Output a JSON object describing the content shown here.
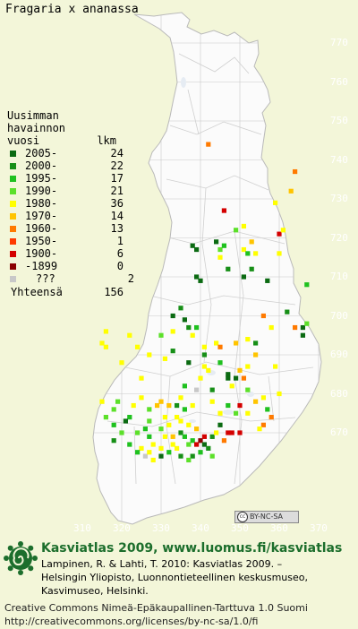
{
  "title": "Fragaria x ananassa",
  "map": {
    "y_ticks": [
      "770",
      "760",
      "750",
      "740",
      "730",
      "720",
      "710",
      "700",
      "690",
      "680",
      "670"
    ],
    "x_ticks": [
      "310",
      "320",
      "330",
      "340",
      "350",
      "360",
      "370"
    ]
  },
  "legend": {
    "heading": [
      "Uusimman",
      "havainnon"
    ],
    "col_year": "vuosi",
    "col_count": "lkm",
    "items": [
      {
        "label": "2005-",
        "count": "24",
        "color": "#0b6a12"
      },
      {
        "label": "2000-",
        "count": "22",
        "color": "#178f17"
      },
      {
        "label": "1995-",
        "count": "17",
        "color": "#1fc11f"
      },
      {
        "label": "1990-",
        "count": "21",
        "color": "#5ce02a"
      },
      {
        "label": "1980-",
        "count": "36",
        "color": "#ffff00"
      },
      {
        "label": "1970-",
        "count": "14",
        "color": "#ffc400"
      },
      {
        "label": "1960-",
        "count": "13",
        "color": "#ff7a00"
      },
      {
        "label": "1950-",
        "count": "1",
        "color": "#ff3a00"
      },
      {
        "label": "1900-",
        "count": "6",
        "color": "#d40000"
      },
      {
        "label": "-1899",
        "count": "0",
        "color": "#8a0000"
      },
      {
        "label": "???",
        "count": "2",
        "color": "#c8c8c8"
      }
    ],
    "total_label": "Yhteensä",
    "total_count": "156"
  },
  "cc_badge": "BY-NC-SA",
  "footer": {
    "title": "Kasviatlas 2009, www.luomus.fi/kasviatlas",
    "citation": [
      "Lampinen, R. & Lahti, T. 2010: Kasviatlas 2009. –",
      "Helsingin Yliopisto, Luonnontieteellinen keskusmuseo,",
      "Kasvimuseo, Helsinki."
    ],
    "license": [
      "Creative Commons Nimeä-Epäkaupallinen-Tarttuva 1.0 Suomi",
      "http://creativecommons.org/licenses/by-nc-sa/1.0/fi"
    ]
  },
  "observations": [
    {
      "e": 349,
      "n": 722,
      "c": 3
    },
    {
      "e": 351,
      "n": 723,
      "c": 4
    },
    {
      "e": 353,
      "n": 719,
      "c": 5
    },
    {
      "e": 346,
      "n": 727,
      "c": 8
    },
    {
      "e": 344,
      "n": 719,
      "c": 0
    },
    {
      "e": 338,
      "n": 718,
      "c": 0
    },
    {
      "e": 339,
      "n": 717,
      "c": 0
    },
    {
      "e": 345,
      "n": 717,
      "c": 3
    },
    {
      "e": 351,
      "n": 717,
      "c": 4
    },
    {
      "e": 354,
      "n": 716,
      "c": 4
    },
    {
      "e": 363,
      "n": 732,
      "c": 5
    },
    {
      "e": 364,
      "n": 737,
      "c": 6
    },
    {
      "e": 342,
      "n": 744,
      "c": 6
    },
    {
      "e": 359,
      "n": 729,
      "c": 4
    },
    {
      "e": 360,
      "n": 721,
      "c": 8
    },
    {
      "e": 361,
      "n": 722,
      "c": 4
    },
    {
      "e": 360,
      "n": 716,
      "c": 4
    },
    {
      "e": 339,
      "n": 710,
      "c": 0
    },
    {
      "e": 340,
      "n": 709,
      "c": 0
    },
    {
      "e": 351,
      "n": 710,
      "c": 0
    },
    {
      "e": 357,
      "n": 709,
      "c": 0
    },
    {
      "e": 353,
      "n": 712,
      "c": 1
    },
    {
      "e": 367,
      "n": 708,
      "c": 2
    },
    {
      "e": 362,
      "n": 701,
      "c": 1
    },
    {
      "e": 346,
      "n": 718,
      "c": 2
    },
    {
      "e": 347,
      "n": 712,
      "c": 1
    },
    {
      "e": 352,
      "n": 716,
      "c": 2
    },
    {
      "e": 345,
      "n": 715,
      "c": 4
    },
    {
      "e": 336,
      "n": 699,
      "c": 0
    },
    {
      "e": 337,
      "n": 697,
      "c": 1
    },
    {
      "e": 333,
      "n": 696,
      "c": 4
    },
    {
      "e": 330,
      "n": 695,
      "c": 3
    },
    {
      "e": 338,
      "n": 695,
      "c": 4
    },
    {
      "e": 344,
      "n": 693,
      "c": 4
    },
    {
      "e": 345,
      "n": 692,
      "c": 6
    },
    {
      "e": 349,
      "n": 693,
      "c": 5
    },
    {
      "e": 352,
      "n": 694,
      "c": 4
    },
    {
      "e": 354,
      "n": 690,
      "c": 5
    },
    {
      "e": 358,
      "n": 697,
      "c": 4
    },
    {
      "e": 364,
      "n": 697,
      "c": 6
    },
    {
      "e": 366,
      "n": 697,
      "c": 0
    },
    {
      "e": 367,
      "n": 698,
      "c": 3
    },
    {
      "e": 366,
      "n": 695,
      "c": 0
    },
    {
      "e": 316,
      "n": 696,
      "c": 4
    },
    {
      "e": 315,
      "n": 693,
      "c": 4
    },
    {
      "e": 316,
      "n": 692,
      "c": 4
    },
    {
      "e": 322,
      "n": 695,
      "c": 4
    },
    {
      "e": 324,
      "n": 692,
      "c": 4
    },
    {
      "e": 327,
      "n": 690,
      "c": 4
    },
    {
      "e": 331,
      "n": 689,
      "c": 4
    },
    {
      "e": 333,
      "n": 691,
      "c": 1
    },
    {
      "e": 337,
      "n": 688,
      "c": 0
    },
    {
      "e": 341,
      "n": 690,
      "c": 1
    },
    {
      "e": 345,
      "n": 688,
      "c": 2
    },
    {
      "e": 347,
      "n": 685,
      "c": 0
    },
    {
      "e": 347,
      "n": 684,
      "c": 0
    },
    {
      "e": 349,
      "n": 684,
      "c": 0
    },
    {
      "e": 340,
      "n": 684,
      "c": 4
    },
    {
      "e": 339,
      "n": 681,
      "c": 10
    },
    {
      "e": 343,
      "n": 681,
      "c": 1
    },
    {
      "e": 351,
      "n": 684,
      "c": 6
    },
    {
      "e": 359,
      "n": 687,
      "c": 4
    },
    {
      "e": 356,
      "n": 679,
      "c": 4
    },
    {
      "e": 357,
      "n": 676,
      "c": 2
    },
    {
      "e": 358,
      "n": 674,
      "c": 6
    },
    {
      "e": 356,
      "n": 672,
      "c": 6
    },
    {
      "e": 355,
      "n": 671,
      "c": 4
    },
    {
      "e": 350,
      "n": 677,
      "c": 8
    },
    {
      "e": 349,
      "n": 675,
      "c": 3
    },
    {
      "e": 352,
      "n": 675,
      "c": 4
    },
    {
      "e": 345,
      "n": 675,
      "c": 4
    },
    {
      "e": 343,
      "n": 678,
      "c": 4
    },
    {
      "e": 338,
      "n": 677,
      "c": 4
    },
    {
      "e": 335,
      "n": 679,
      "c": 4
    },
    {
      "e": 336,
      "n": 676,
      "c": 2
    },
    {
      "e": 330,
      "n": 678,
      "c": 5
    },
    {
      "e": 325,
      "n": 679,
      "c": 4
    },
    {
      "e": 323,
      "n": 677,
      "c": 4
    },
    {
      "e": 319,
      "n": 678,
      "c": 3
    },
    {
      "e": 318,
      "n": 676,
      "c": 3
    },
    {
      "e": 322,
      "n": 674,
      "c": 2
    },
    {
      "e": 318,
      "n": 672,
      "c": 2
    },
    {
      "e": 321,
      "n": 673,
      "c": 0
    },
    {
      "e": 320,
      "n": 670,
      "c": 3
    },
    {
      "e": 324,
      "n": 670,
      "c": 3
    },
    {
      "e": 326,
      "n": 671,
      "c": 2
    },
    {
      "e": 327,
      "n": 669,
      "c": 2
    },
    {
      "e": 328,
      "n": 667,
      "c": 4
    },
    {
      "e": 330,
      "n": 671,
      "c": 3
    },
    {
      "e": 332,
      "n": 672,
      "c": 4
    },
    {
      "e": 331,
      "n": 669,
      "c": 4
    },
    {
      "e": 333,
      "n": 667,
      "c": 4
    },
    {
      "e": 335,
      "n": 670,
      "c": 1
    },
    {
      "e": 336,
      "n": 669,
      "c": 2
    },
    {
      "e": 337,
      "n": 667,
      "c": 3
    },
    {
      "e": 338,
      "n": 668,
      "c": 2
    },
    {
      "e": 339,
      "n": 667,
      "c": 8
    },
    {
      "e": 340,
      "n": 668,
      "c": 9
    },
    {
      "e": 341,
      "n": 669,
      "c": 8
    },
    {
      "e": 341,
      "n": 667,
      "c": 0
    },
    {
      "e": 342,
      "n": 666,
      "c": 1
    },
    {
      "e": 343,
      "n": 669,
      "c": 1
    },
    {
      "e": 344,
      "n": 670,
      "c": 4
    },
    {
      "e": 345,
      "n": 672,
      "c": 0
    },
    {
      "e": 347,
      "n": 670,
      "c": 8
    },
    {
      "e": 348,
      "n": 670,
      "c": 8
    },
    {
      "e": 350,
      "n": 670,
      "c": 8
    },
    {
      "e": 339,
      "n": 671,
      "c": 5
    },
    {
      "e": 337,
      "n": 672,
      "c": 4
    },
    {
      "e": 335,
      "n": 673,
      "c": 4
    },
    {
      "e": 334,
      "n": 674,
      "c": 4
    },
    {
      "e": 331,
      "n": 674,
      "c": 4
    },
    {
      "e": 327,
      "n": 673,
      "c": 3
    },
    {
      "e": 325,
      "n": 666,
      "c": 4
    },
    {
      "e": 324,
      "n": 665,
      "c": 2
    },
    {
      "e": 326,
      "n": 664,
      "c": 10
    },
    {
      "e": 328,
      "n": 663,
      "c": 4
    },
    {
      "e": 330,
      "n": 664,
      "c": 0
    },
    {
      "e": 332,
      "n": 665,
      "c": 2
    },
    {
      "e": 334,
      "n": 666,
      "c": 4
    },
    {
      "e": 335,
      "n": 664,
      "c": 1
    },
    {
      "e": 338,
      "n": 664,
      "c": 1
    },
    {
      "e": 337,
      "n": 663,
      "c": 3
    },
    {
      "e": 340,
      "n": 665,
      "c": 2
    },
    {
      "e": 343,
      "n": 664,
      "c": 3
    },
    {
      "e": 346,
      "n": 668,
      "c": 6
    },
    {
      "e": 322,
      "n": 667,
      "c": 2
    },
    {
      "e": 318,
      "n": 668,
      "c": 1
    },
    {
      "e": 327,
      "n": 676,
      "c": 3
    },
    {
      "e": 329,
      "n": 677,
      "c": 5
    },
    {
      "e": 332,
      "n": 677,
      "c": 5
    },
    {
      "e": 334,
      "n": 677,
      "c": 1
    },
    {
      "e": 315,
      "n": 678,
      "c": 4
    },
    {
      "e": 316,
      "n": 674,
      "c": 3
    },
    {
      "e": 348,
      "n": 682,
      "c": 4
    },
    {
      "e": 350,
      "n": 686,
      "c": 5
    },
    {
      "e": 352,
      "n": 687,
      "c": 4
    },
    {
      "e": 341,
      "n": 692,
      "c": 4
    },
    {
      "e": 341,
      "n": 687,
      "c": 4
    },
    {
      "e": 339,
      "n": 697,
      "c": 2
    },
    {
      "e": 354,
      "n": 693,
      "c": 1
    },
    {
      "e": 333,
      "n": 700,
      "c": 0
    },
    {
      "e": 335,
      "n": 702,
      "c": 1
    },
    {
      "e": 356,
      "n": 700,
      "c": 6
    },
    {
      "e": 342,
      "n": 686,
      "c": 4
    },
    {
      "e": 336,
      "n": 682,
      "c": 2
    },
    {
      "e": 320,
      "n": 688,
      "c": 4
    },
    {
      "e": 325,
      "n": 684,
      "c": 4
    },
    {
      "e": 360,
      "n": 680,
      "c": 4
    },
    {
      "e": 352,
      "n": 681,
      "c": 3
    },
    {
      "e": 347,
      "n": 677,
      "c": 2
    },
    {
      "e": 354,
      "n": 678,
      "c": 5
    },
    {
      "e": 327,
      "n": 665,
      "c": 4
    },
    {
      "e": 330,
      "n": 666,
      "c": 4
    },
    {
      "e": 333,
      "n": 669,
      "c": 5
    }
  ]
}
